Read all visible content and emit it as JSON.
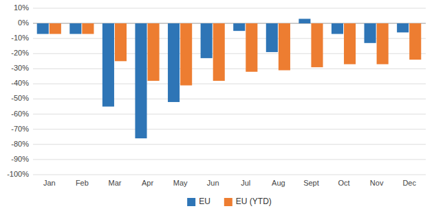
{
  "chart_data": {
    "type": "bar",
    "categories": [
      "Jan",
      "Feb",
      "Mar",
      "Apr",
      "May",
      "Jun",
      "Jul",
      "Aug",
      "Sept",
      "Oct",
      "Nov",
      "Dec"
    ],
    "series": [
      {
        "name": "EU",
        "color": "#2E75B6",
        "values": [
          -7,
          -7,
          -55,
          -76,
          -52,
          -23,
          -5,
          -19,
          3,
          -7,
          -13,
          -6
        ]
      },
      {
        "name": "EU (YTD)",
        "color": "#ED7D31",
        "values": [
          -7,
          -7,
          -25,
          -38,
          -41,
          -38,
          -32,
          -31,
          -29,
          -27,
          -27,
          -24
        ]
      }
    ],
    "ylim": [
      -100,
      10
    ],
    "yticks": [
      {
        "value": 10,
        "label": "10%"
      },
      {
        "value": 0,
        "label": "0%"
      },
      {
        "value": -10,
        "label": "-10%"
      },
      {
        "value": -20,
        "label": "-20%"
      },
      {
        "value": -30,
        "label": "-30%"
      },
      {
        "value": -40,
        "label": "-40%"
      },
      {
        "value": -50,
        "label": "-50%"
      },
      {
        "value": -60,
        "label": "-60%"
      },
      {
        "value": -70,
        "label": "-70%"
      },
      {
        "value": -80,
        "label": "-80%"
      },
      {
        "value": -90,
        "label": "-90%"
      },
      {
        "value": -100,
        "label": "-100%"
      }
    ],
    "grid": true,
    "legend": "bottom"
  }
}
